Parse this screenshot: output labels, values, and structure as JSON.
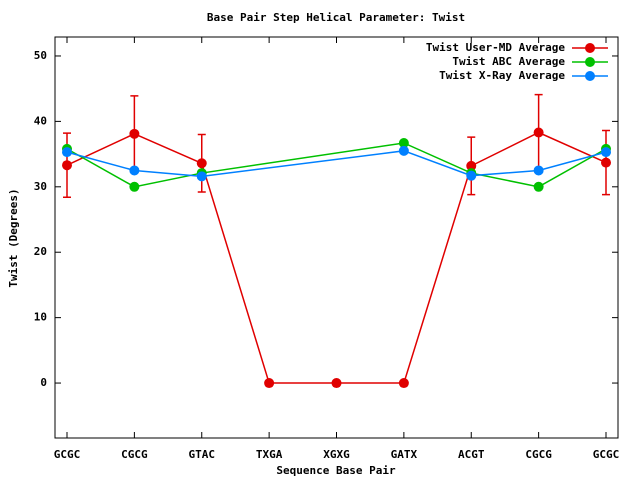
{
  "chart_data": {
    "type": "line",
    "title": "Base Pair Step Helical Parameter: Twist",
    "x_label": "Sequence Base Pair",
    "y_label": "Twist (Degrees)",
    "categories": [
      "GCGC",
      "CGCG",
      "GTAC",
      "TXGA",
      "XGXG",
      "GATX",
      "ACGT",
      "CGCG",
      "GCGC"
    ],
    "series": [
      {
        "name": "Twist User-MD Average",
        "color": "#e00000",
        "values": [
          33.3,
          38.1,
          33.6,
          0,
          0,
          0,
          33.2,
          38.3,
          33.7
        ],
        "errors": [
          4.9,
          5.8,
          4.4,
          0,
          0,
          0,
          4.4,
          5.8,
          4.9
        ]
      },
      {
        "name": "Twist ABC Average",
        "color": "#00c000",
        "values": [
          35.8,
          30.0,
          32.1,
          null,
          null,
          36.7,
          32.1,
          30.0,
          35.8
        ]
      },
      {
        "name": "Twist X-Ray Average",
        "color": "#0080ff",
        "values": [
          35.3,
          32.5,
          31.6,
          null,
          null,
          35.5,
          31.7,
          32.5,
          35.3
        ]
      }
    ],
    "ylim": [
      -8.4,
      52.9
    ],
    "yticks": [
      0,
      10,
      20,
      30,
      40,
      50
    ],
    "legend": "upper right"
  }
}
